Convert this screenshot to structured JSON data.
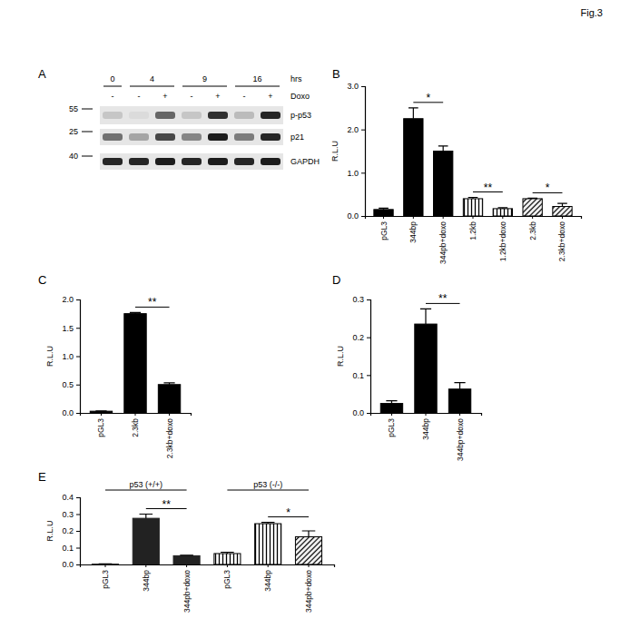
{
  "figure": {
    "label": "Fig.3"
  },
  "chart_data": [
    {
      "type": "blot",
      "title": "A",
      "time_unit": "hrs",
      "treatment_label": "Doxo",
      "time_groups": [
        {
          "label": "0",
          "doxo": [
            "-"
          ]
        },
        {
          "label": "4",
          "doxo": [
            "-",
            "+"
          ]
        },
        {
          "label": "9",
          "doxo": [
            "-",
            "+"
          ]
        },
        {
          "label": "16",
          "doxo": [
            "-",
            "+"
          ]
        }
      ],
      "rows": [
        {
          "name": "p-p53",
          "kda": 55,
          "values": [
            0.15,
            0.05,
            0.6,
            0.15,
            0.85,
            0.2,
            0.9
          ]
        },
        {
          "name": "p21",
          "kda": 25,
          "values": [
            0.55,
            0.3,
            0.75,
            0.45,
            0.95,
            0.5,
            0.9
          ]
        },
        {
          "name": "GAPDH",
          "kda": 40,
          "values": [
            0.9,
            0.9,
            0.95,
            0.9,
            0.95,
            0.9,
            0.95
          ]
        }
      ]
    },
    {
      "type": "bar",
      "title": "B",
      "y_label": "R.L.U",
      "categories": [
        "pGL3",
        "344bp",
        "344pb+doxo",
        "1.2kb",
        "1.2kb+doxo",
        "2.3kb",
        "2.3kb+doxo"
      ],
      "values": [
        0.15,
        2.25,
        1.5,
        0.4,
        0.17,
        0.4,
        0.22
      ],
      "errors": [
        0.03,
        0.25,
        0.12,
        0.03,
        0.02,
        0.01,
        0.07
      ],
      "colors": [
        "#000000",
        "#000000",
        "#000000",
        "#000000",
        "#000000",
        "#000000",
        "#000000"
      ],
      "ylim": [
        0,
        3
      ],
      "yticks": [
        {
          "value": 0,
          "label": "0.0"
        },
        {
          "value": 1,
          "label": "1.0"
        },
        {
          "value": 2,
          "label": "2.0"
        },
        {
          "value": 3,
          "label": "3.0"
        }
      ],
      "significance": [
        {
          "text": "*",
          "between": [
            1,
            2
          ]
        },
        {
          "text": "**",
          "between": [
            3,
            4
          ]
        },
        {
          "text": "*",
          "between": [
            5,
            6
          ]
        }
      ]
    },
    {
      "type": "bar",
      "title": "C",
      "y_label": "R.L.U",
      "categories": [
        "pGL3",
        "2.3kb",
        "2.3kb+doxo"
      ],
      "values": [
        0.03,
        1.75,
        0.5
      ],
      "errors": [
        0.005,
        0.02,
        0.03
      ],
      "colors": [
        "#000000",
        "#000000",
        "#000000"
      ],
      "ylim": [
        0,
        2
      ],
      "yticks": [
        {
          "value": 0,
          "label": "0.0"
        },
        {
          "value": 0.5,
          "label": "0.5"
        },
        {
          "value": 1,
          "label": "1.0"
        },
        {
          "value": 1.5,
          "label": "1.5"
        },
        {
          "value": 2,
          "label": "2.0"
        }
      ],
      "significance": [
        {
          "text": "**",
          "between": [
            1,
            2
          ]
        }
      ]
    },
    {
      "type": "bar",
      "title": "D",
      "y_label": "R.L.U",
      "categories": [
        "pGL3",
        "344bp",
        "344bp+doxo"
      ],
      "values": [
        0.025,
        0.235,
        0.063
      ],
      "errors": [
        0.007,
        0.04,
        0.017
      ],
      "colors": [
        "#000000",
        "#000000",
        "#000000"
      ],
      "ylim": [
        0,
        0.3
      ],
      "yticks": [
        {
          "value": 0,
          "label": "0.0"
        },
        {
          "value": 0.1,
          "label": "0.1"
        },
        {
          "value": 0.2,
          "label": "0.2"
        },
        {
          "value": 0.3,
          "label": "0.3"
        }
      ],
      "significance": [
        {
          "text": "**",
          "between": [
            1,
            2
          ]
        }
      ]
    },
    {
      "type": "bar",
      "title": "E",
      "y_label": "R.L.U",
      "categories": [
        "pGL3",
        "344bp",
        "344pb+doxo",
        "pGL3",
        "344bp",
        "344pb+doxo"
      ],
      "values": [
        0.002,
        0.275,
        0.052,
        0.065,
        0.243,
        0.165
      ],
      "errors": [
        0.001,
        0.025,
        0.003,
        0.008,
        0.008,
        0.035
      ],
      "colors": [
        "#222222",
        "#222222",
        "#222222",
        "#000000",
        "#000000",
        "#000000"
      ],
      "ylim": [
        0,
        0.4
      ],
      "yticks": [
        {
          "value": 0,
          "label": "0.0"
        },
        {
          "value": 0.1,
          "label": "0.1"
        },
        {
          "value": 0.2,
          "label": "0.2"
        },
        {
          "value": 0.3,
          "label": "0.3"
        },
        {
          "value": 0.4,
          "label": "0.4"
        }
      ],
      "groups": [
        {
          "label": "p53 (+/+)",
          "between": [
            0,
            2
          ]
        },
        {
          "label": "p53 (-/-)",
          "between": [
            3,
            5
          ]
        }
      ],
      "significance": [
        {
          "text": "**",
          "between": [
            1,
            2
          ]
        },
        {
          "text": "*",
          "between": [
            4,
            5
          ]
        }
      ]
    }
  ]
}
